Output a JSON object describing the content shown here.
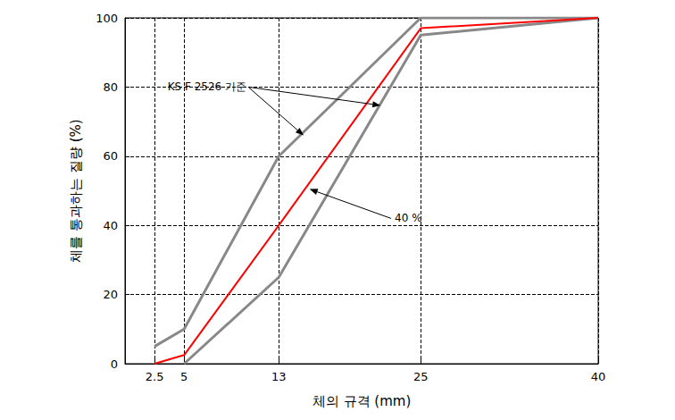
{
  "chart_data": {
    "type": "line",
    "xlabel": "체의 규격 (mm)",
    "ylabel": "체를 통과하는 질량 (%)",
    "xlim": [
      0,
      40
    ],
    "xticks": [
      2.5,
      5,
      13,
      25,
      40
    ],
    "ylim": [
      0,
      100
    ],
    "yticks": [
      0,
      20,
      40,
      60,
      80,
      100
    ],
    "grid": true,
    "series": [
      {
        "name": "KS F 2526 기준",
        "color": "#888888",
        "x": [
          2.5,
          5,
          13,
          25,
          40
        ],
        "values": [
          5,
          10,
          60,
          100,
          100
        ]
      },
      {
        "name": "KS F 2526 기준",
        "color": "#888888",
        "x": [
          5,
          13,
          25,
          40
        ],
        "values": [
          0,
          25,
          95,
          100
        ]
      },
      {
        "name": "40 %",
        "color": "#ff0000",
        "x": [
          2.5,
          5,
          13,
          25,
          40
        ],
        "values": [
          0,
          2.5,
          40,
          97,
          100
        ]
      }
    ],
    "annotations": [
      {
        "text": "KS F 2526 기준",
        "x": 3.6,
        "y": 80,
        "arrows": [
          [
            15.1,
            66
          ],
          [
            21.6,
            74.7
          ]
        ]
      },
      {
        "text": "40 %",
        "x": 22.8,
        "y": 42,
        "arrows": [
          [
            15.6,
            50.5
          ]
        ]
      }
    ]
  }
}
